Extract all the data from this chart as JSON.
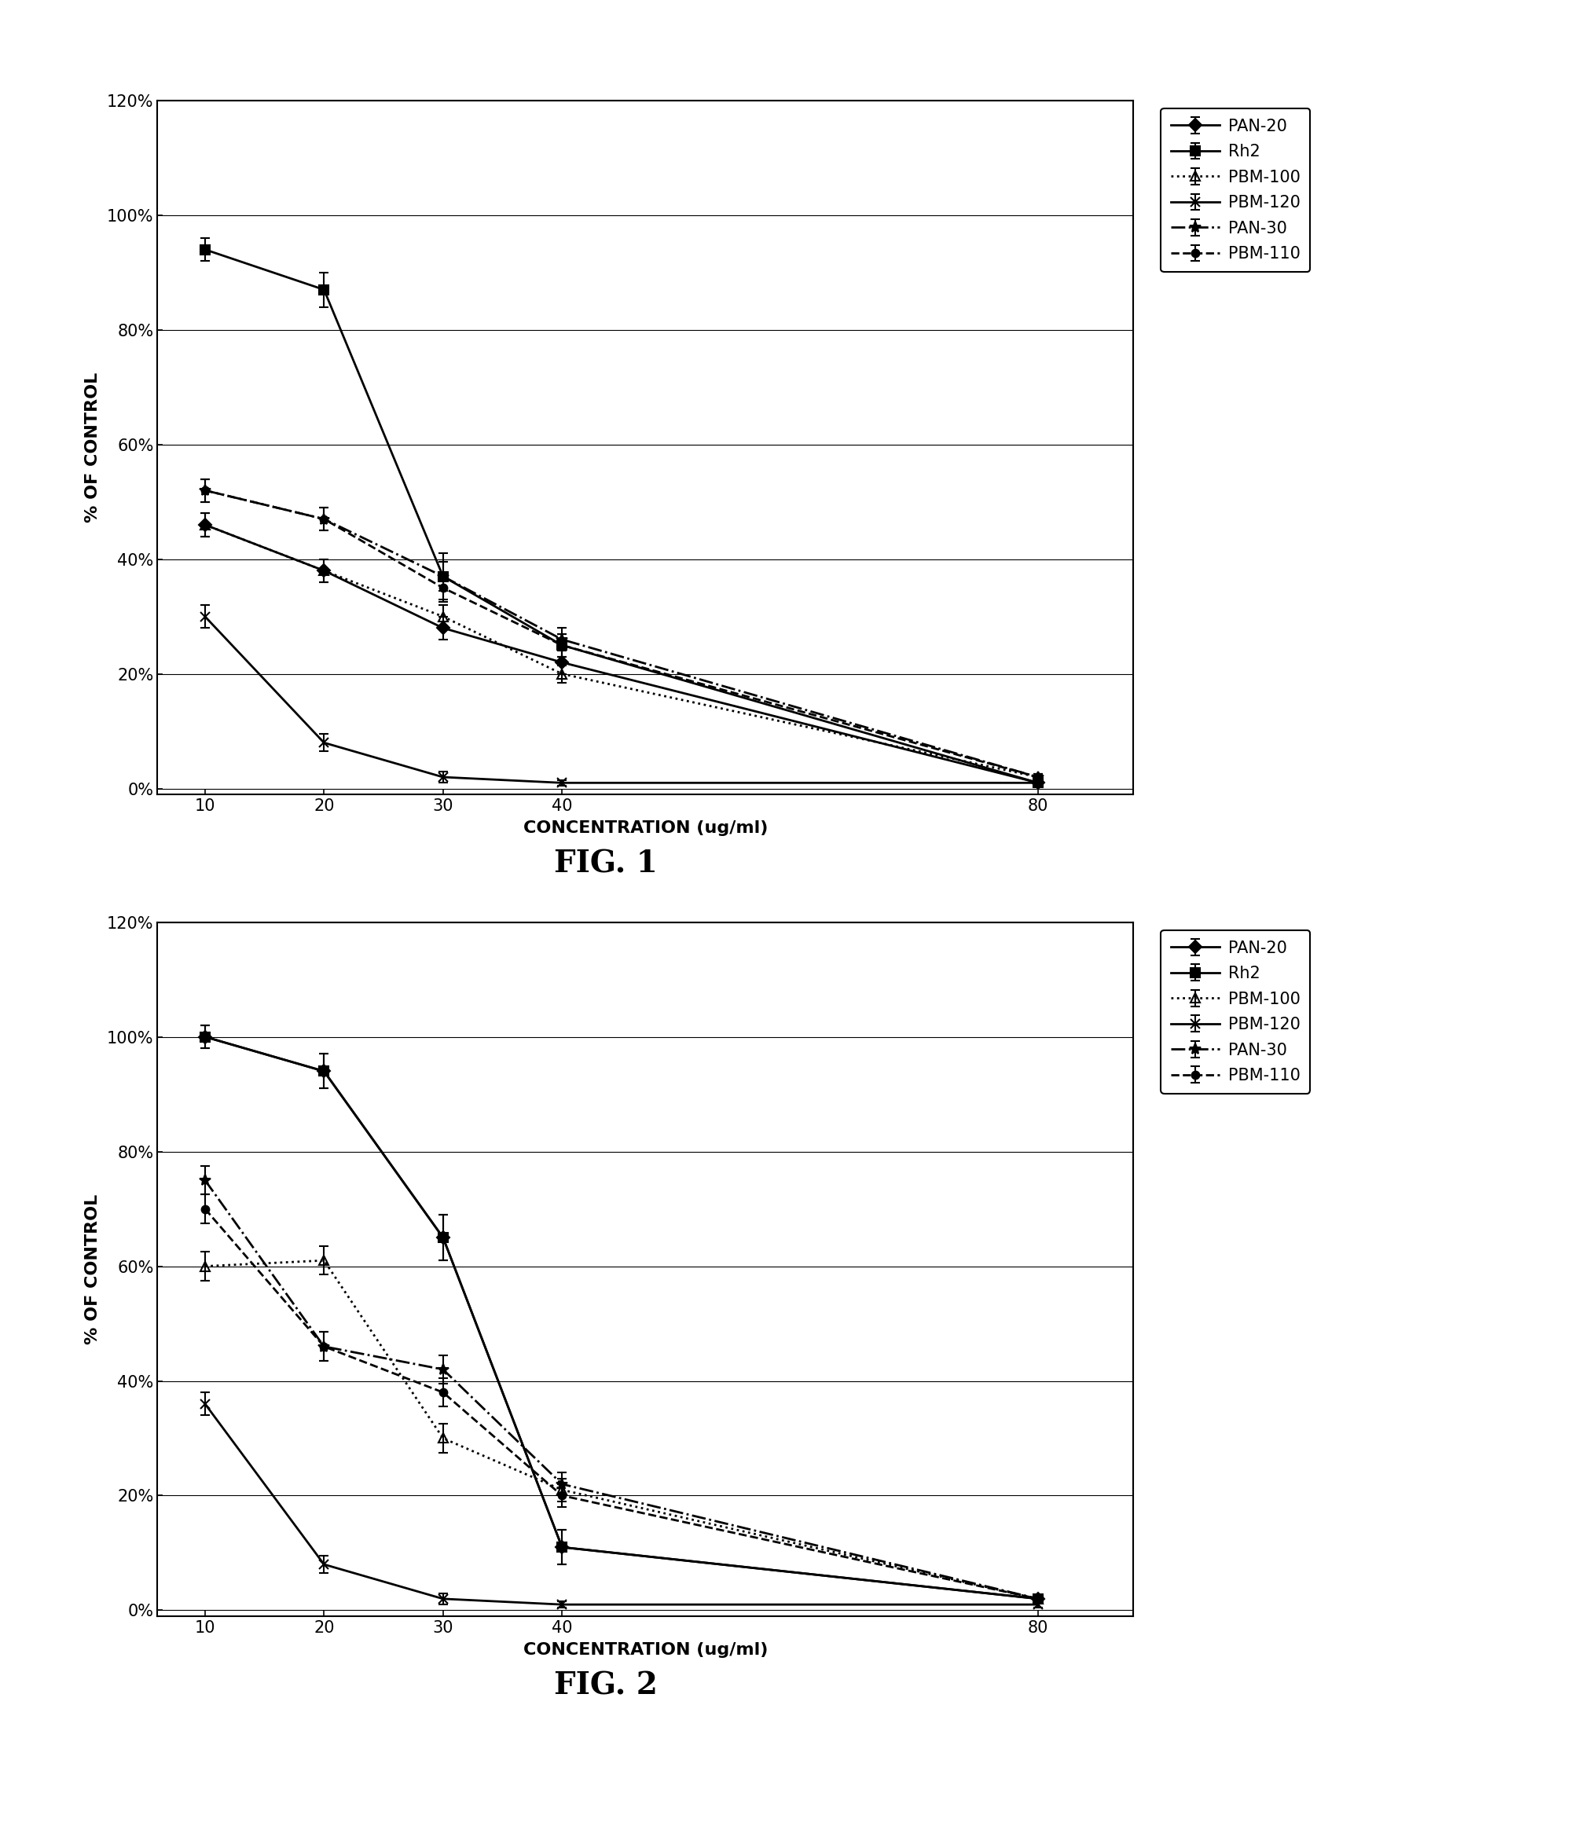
{
  "x": [
    10,
    20,
    30,
    40,
    80
  ],
  "fig1": {
    "PAN-20": [
      0.46,
      0.38,
      0.28,
      0.22,
      0.01
    ],
    "Rh2": [
      0.94,
      0.87,
      0.37,
      0.25,
      0.01
    ],
    "PBM-100": [
      0.46,
      0.38,
      0.3,
      0.2,
      0.02
    ],
    "PBM-120": [
      0.3,
      0.08,
      0.02,
      0.01,
      0.01
    ],
    "PAN-30": [
      0.52,
      0.47,
      0.37,
      0.26,
      0.02
    ],
    "PBM-110": [
      0.52,
      0.47,
      0.35,
      0.25,
      0.02
    ]
  },
  "fig1_err": {
    "PAN-20": [
      0.02,
      0.02,
      0.02,
      0.02,
      0.005
    ],
    "Rh2": [
      0.02,
      0.03,
      0.04,
      0.02,
      0.005
    ],
    "PBM-100": [
      0.02,
      0.02,
      0.02,
      0.015,
      0.005
    ],
    "PBM-120": [
      0.02,
      0.015,
      0.01,
      0.005,
      0.005
    ],
    "PAN-30": [
      0.02,
      0.02,
      0.025,
      0.02,
      0.005
    ],
    "PBM-110": [
      0.02,
      0.02,
      0.025,
      0.02,
      0.005
    ]
  },
  "fig2": {
    "PAN-20": [
      1.0,
      0.94,
      0.65,
      0.11,
      0.02
    ],
    "Rh2": [
      1.0,
      0.94,
      0.65,
      0.11,
      0.02
    ],
    "PBM-100": [
      0.6,
      0.61,
      0.3,
      0.21,
      0.02
    ],
    "PBM-120": [
      0.36,
      0.08,
      0.02,
      0.01,
      0.01
    ],
    "PAN-30": [
      0.75,
      0.46,
      0.42,
      0.22,
      0.02
    ],
    "PBM-110": [
      0.7,
      0.46,
      0.38,
      0.2,
      0.02
    ]
  },
  "fig2_err": {
    "PAN-20": [
      0.02,
      0.03,
      0.04,
      0.03,
      0.005
    ],
    "Rh2": [
      0.02,
      0.03,
      0.04,
      0.03,
      0.005
    ],
    "PBM-100": [
      0.025,
      0.025,
      0.025,
      0.02,
      0.005
    ],
    "PBM-120": [
      0.02,
      0.015,
      0.01,
      0.005,
      0.005
    ],
    "PAN-30": [
      0.025,
      0.025,
      0.025,
      0.02,
      0.005
    ],
    "PBM-110": [
      0.025,
      0.025,
      0.025,
      0.02,
      0.005
    ]
  },
  "series": [
    "PAN-20",
    "Rh2",
    "PBM-100",
    "PBM-120",
    "PAN-30",
    "PBM-110"
  ],
  "styles": {
    "PAN-20": {
      "linestyle": "-",
      "marker": "D",
      "markersize": 8,
      "fillstyle": "full"
    },
    "Rh2": {
      "linestyle": "-",
      "marker": "s",
      "markersize": 8,
      "fillstyle": "full"
    },
    "PBM-100": {
      "linestyle": ":",
      "marker": "^",
      "markersize": 8,
      "fillstyle": "none"
    },
    "PBM-120": {
      "linestyle": "-",
      "marker": "x",
      "markersize": 9,
      "fillstyle": "full"
    },
    "PAN-30": {
      "linestyle": "-.",
      "marker": "*",
      "markersize": 10,
      "fillstyle": "full"
    },
    "PBM-110": {
      "linestyle": "--",
      "marker": "o",
      "markersize": 7,
      "fillstyle": "full"
    }
  },
  "ylabel": "% OF CONTROL",
  "xlabel": "CONCENTRATION (ug/ml)",
  "fig1_label": "FIG. 1",
  "fig2_label": "FIG. 2",
  "yticks": [
    0.0,
    0.2,
    0.4,
    0.6,
    0.8,
    1.0,
    1.2
  ],
  "ytick_labels": [
    "0%",
    "20%",
    "40%",
    "60%",
    "80%",
    "100%",
    "120%"
  ],
  "xticks": [
    10,
    20,
    30,
    40,
    80
  ],
  "xlim": [
    6,
    88
  ],
  "ylim": [
    -0.01,
    0.13
  ],
  "bg_color": "#ffffff",
  "line_color": "#000000",
  "fontsize_tick": 15,
  "fontsize_label": 16,
  "fontsize_legend": 15,
  "fontsize_figlabel": 28,
  "linewidth": 2.0,
  "capsize": 4
}
